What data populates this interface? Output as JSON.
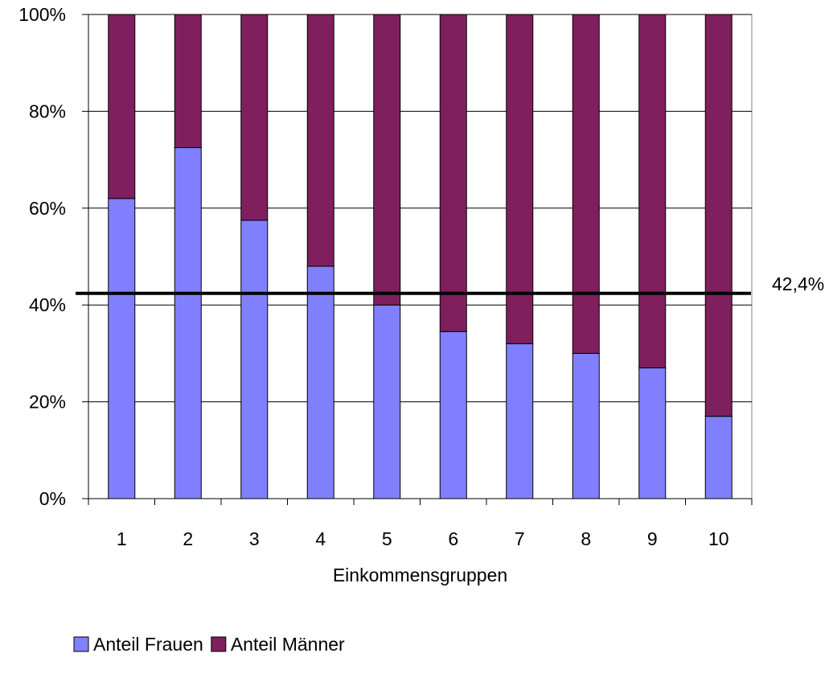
{
  "chart_data": {
    "type": "bar",
    "stacked": true,
    "normalized": true,
    "categories": [
      "1",
      "2",
      "3",
      "4",
      "5",
      "6",
      "7",
      "8",
      "9",
      "10"
    ],
    "series": [
      {
        "name": "Anteil Frauen",
        "values": [
          62,
          72.5,
          57.5,
          48,
          40,
          34.5,
          32,
          30,
          27,
          17
        ],
        "color": "#8080FF"
      },
      {
        "name": "Anteil Männer",
        "values": [
          38,
          27.5,
          42.5,
          52,
          60,
          65.5,
          68,
          70,
          73,
          83
        ],
        "color": "#7F1F5E"
      }
    ],
    "y_ticks": [
      "0%",
      "20%",
      "40%",
      "60%",
      "80%",
      "100%"
    ],
    "ylim": [
      0,
      100
    ],
    "xlabel": "Einkommensgruppen",
    "ylabel": "",
    "reference_line": {
      "value": 42.4,
      "label": "42,4%"
    },
    "grid": true,
    "legend_position": "bottom"
  }
}
